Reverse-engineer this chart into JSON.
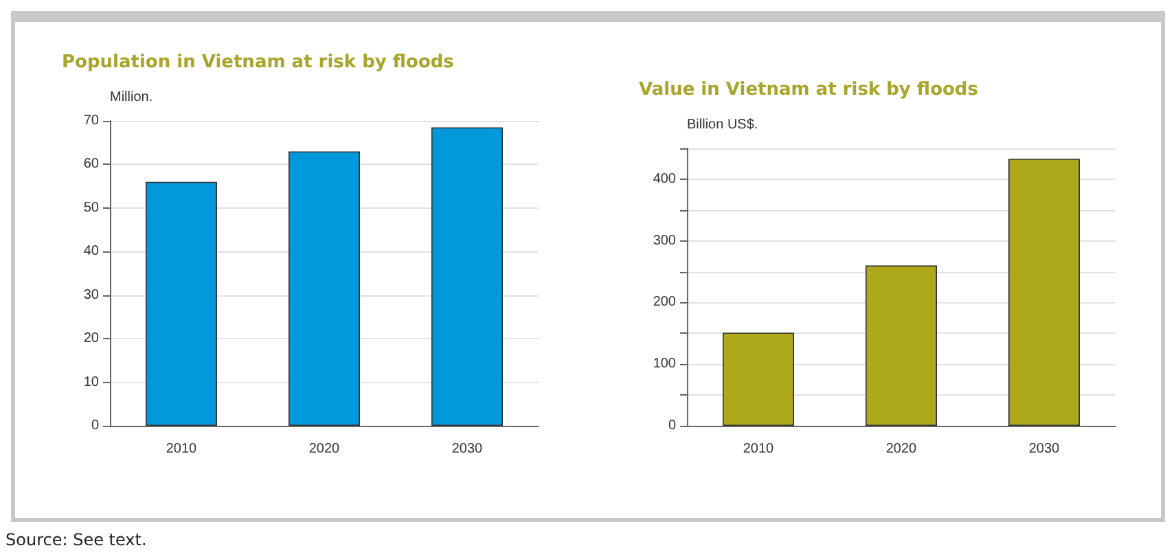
{
  "chart_data": [
    {
      "type": "bar",
      "title": "Population in Vietnam at risk by floods",
      "ylabel": "Million.",
      "categories": [
        "2010",
        "2020",
        "2030"
      ],
      "series": [
        {
          "color": "#0299dc",
          "values": [
            56,
            63,
            68.5
          ]
        }
      ],
      "ylim": [
        0,
        70
      ],
      "yticks": [
        0,
        10,
        20,
        30,
        40,
        50,
        60,
        70
      ],
      "grid": "y"
    },
    {
      "type": "bar",
      "title": "Value in Vietnam at risk by floods",
      "ylabel": "Billion US$.",
      "categories": [
        "2010",
        "2020",
        "2030"
      ],
      "series": [
        {
          "color": "#aea91a",
          "values": [
            151,
            260,
            433
          ]
        }
      ],
      "ylim": [
        0,
        450
      ],
      "yticks": [
        0,
        {
          "value": 50,
          "label": null
        },
        100,
        {
          "value": 150,
          "label": null
        },
        200,
        {
          "value": 250,
          "label": null
        },
        300,
        {
          "value": 350,
          "label": null
        },
        400,
        {
          "value": 450,
          "label": null
        }
      ],
      "grid": "y",
      "annotations": [
        "Source: See text."
      ]
    }
  ]
}
